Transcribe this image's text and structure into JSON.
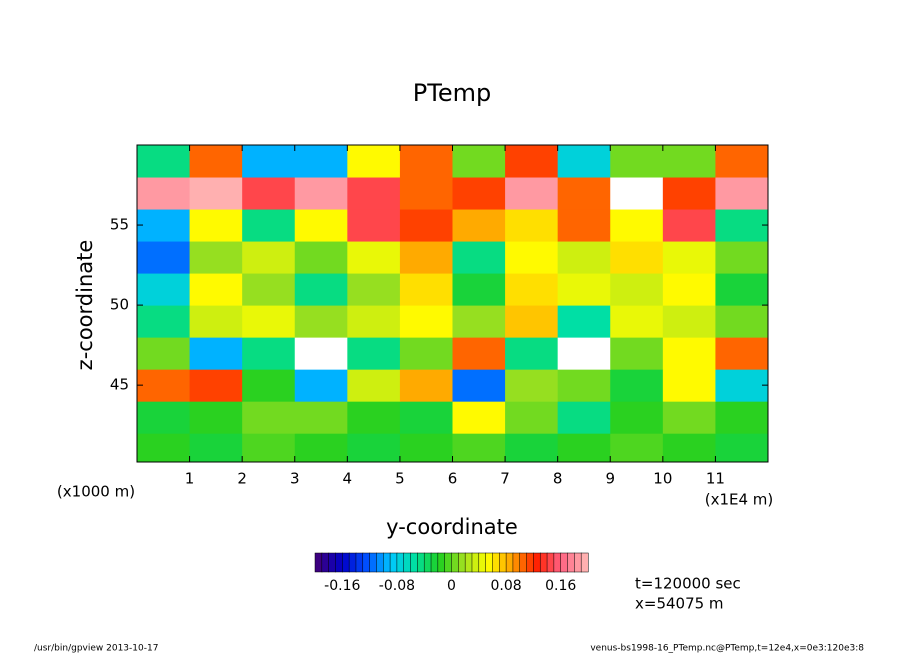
{
  "chart_data": {
    "type": "heatmap",
    "title": "PTemp",
    "x_label": "y-coordinate",
    "y_label": "z-coordinate",
    "y_unit_label": "(x1000 m)",
    "x_unit_label": "(x1E4 m)",
    "annotations": [
      "t=120000 sec",
      "x=54075 m"
    ],
    "footer_left": "/usr/bin/gpview  2013-10-17",
    "footer_right": "venus-bs1998-16_PTemp.nc@PTemp,t=12e4,x=0e3:120e3:8",
    "x": [
      0.5,
      1.5,
      2.5,
      3.5,
      4.5,
      5.5,
      6.5,
      7.5,
      8.5,
      9.5,
      10.5,
      11.5
    ],
    "z": [
      41,
      43,
      45,
      47,
      49,
      51,
      53,
      55,
      57,
      59
    ],
    "values": [
      [
        -0.02,
        -0.03,
        -0.01,
        -0.02,
        -0.03,
        -0.02,
        -0.01,
        -0.03,
        -0.02,
        -0.01,
        -0.02,
        -0.03
      ],
      [
        -0.03,
        -0.02,
        0.0,
        0.0,
        -0.02,
        -0.03,
        0.05,
        0.0,
        -0.04,
        -0.02,
        0.0,
        -0.02
      ],
      [
        0.1,
        0.12,
        -0.02,
        -0.1,
        0.03,
        0.08,
        -0.12,
        0.02,
        0.0,
        -0.03,
        0.05,
        -0.08
      ],
      [
        0.0,
        -0.1,
        -0.05,
        0.21,
        -0.05,
        0.0,
        0.1,
        -0.05,
        0.21,
        0.0,
        0.05,
        0.1
      ],
      [
        -0.04,
        0.03,
        0.04,
        0.01,
        0.03,
        0.05,
        0.01,
        0.07,
        -0.06,
        0.04,
        0.03,
        0.0
      ],
      [
        -0.08,
        0.05,
        0.02,
        -0.04,
        0.02,
        0.06,
        -0.03,
        0.06,
        0.04,
        0.03,
        0.05,
        -0.03
      ],
      [
        -0.12,
        0.02,
        0.03,
        0.0,
        0.04,
        0.08,
        -0.05,
        0.05,
        0.03,
        0.06,
        0.04,
        0.0
      ],
      [
        -0.1,
        0.05,
        -0.05,
        0.05,
        0.15,
        0.12,
        0.08,
        0.06,
        0.1,
        0.05,
        0.15,
        -0.05
      ],
      [
        0.18,
        0.2,
        0.15,
        0.18,
        0.15,
        0.1,
        0.12,
        0.18,
        0.1,
        0.21,
        0.12,
        0.18
      ],
      [
        -0.05,
        0.1,
        -0.1,
        -0.1,
        0.05,
        0.1,
        0.0,
        0.12,
        -0.08,
        0.0,
        0.0,
        0.1
      ]
    ],
    "xlim": [
      0,
      12
    ],
    "xticks": [
      1,
      2,
      3,
      4,
      5,
      6,
      7,
      8,
      9,
      10,
      11
    ],
    "ylim": [
      40.2,
      60
    ],
    "yticks": [
      45,
      50,
      55
    ],
    "clim": [
      -0.2,
      0.2
    ],
    "clevels": 40,
    "cticks": [
      -0.16,
      -0.08,
      0,
      0.08,
      0.16
    ],
    "colormap": [
      "#3c0080",
      "#0000c8",
      "#0050ff",
      "#00c8ff",
      "#00e0a0",
      "#20d020",
      "#a0e020",
      "#ffff00",
      "#ffa000",
      "#ff2000",
      "#ff6080",
      "#ffb0b0"
    ],
    "above_color": "#ffffff"
  }
}
